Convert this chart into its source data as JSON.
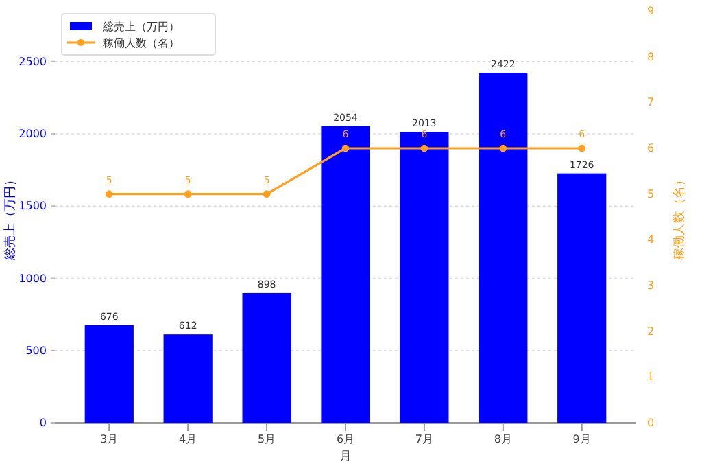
{
  "chart_data": {
    "type": "bar",
    "categories": [
      "3月",
      "4月",
      "5月",
      "6月",
      "7月",
      "8月",
      "9月"
    ],
    "xlabel": "月",
    "ylabel": "総売上（万円）",
    "y2label": "稼働人数（名）",
    "series": [
      {
        "name": "総売上（万円）",
        "color": "#0000ff",
        "values": [
          676,
          612,
          898,
          2054,
          2013,
          2422,
          1726
        ]
      },
      {
        "name": "稼働人数（名）",
        "color": "#ff9f1c",
        "type": "line",
        "axis": "y2",
        "marker": "circle",
        "values": [
          5,
          5,
          5,
          6,
          6,
          6,
          6
        ]
      }
    ],
    "ylim": [
      0,
      2850
    ],
    "yticks": [
      0,
      500,
      1000,
      1500,
      2000,
      2500
    ],
    "y2lim": [
      0,
      9
    ],
    "y2ticks": [
      0,
      1,
      2,
      3,
      4,
      5,
      6,
      7,
      8,
      9
    ],
    "grid": "y",
    "legend": "top left",
    "data_labels": true
  }
}
